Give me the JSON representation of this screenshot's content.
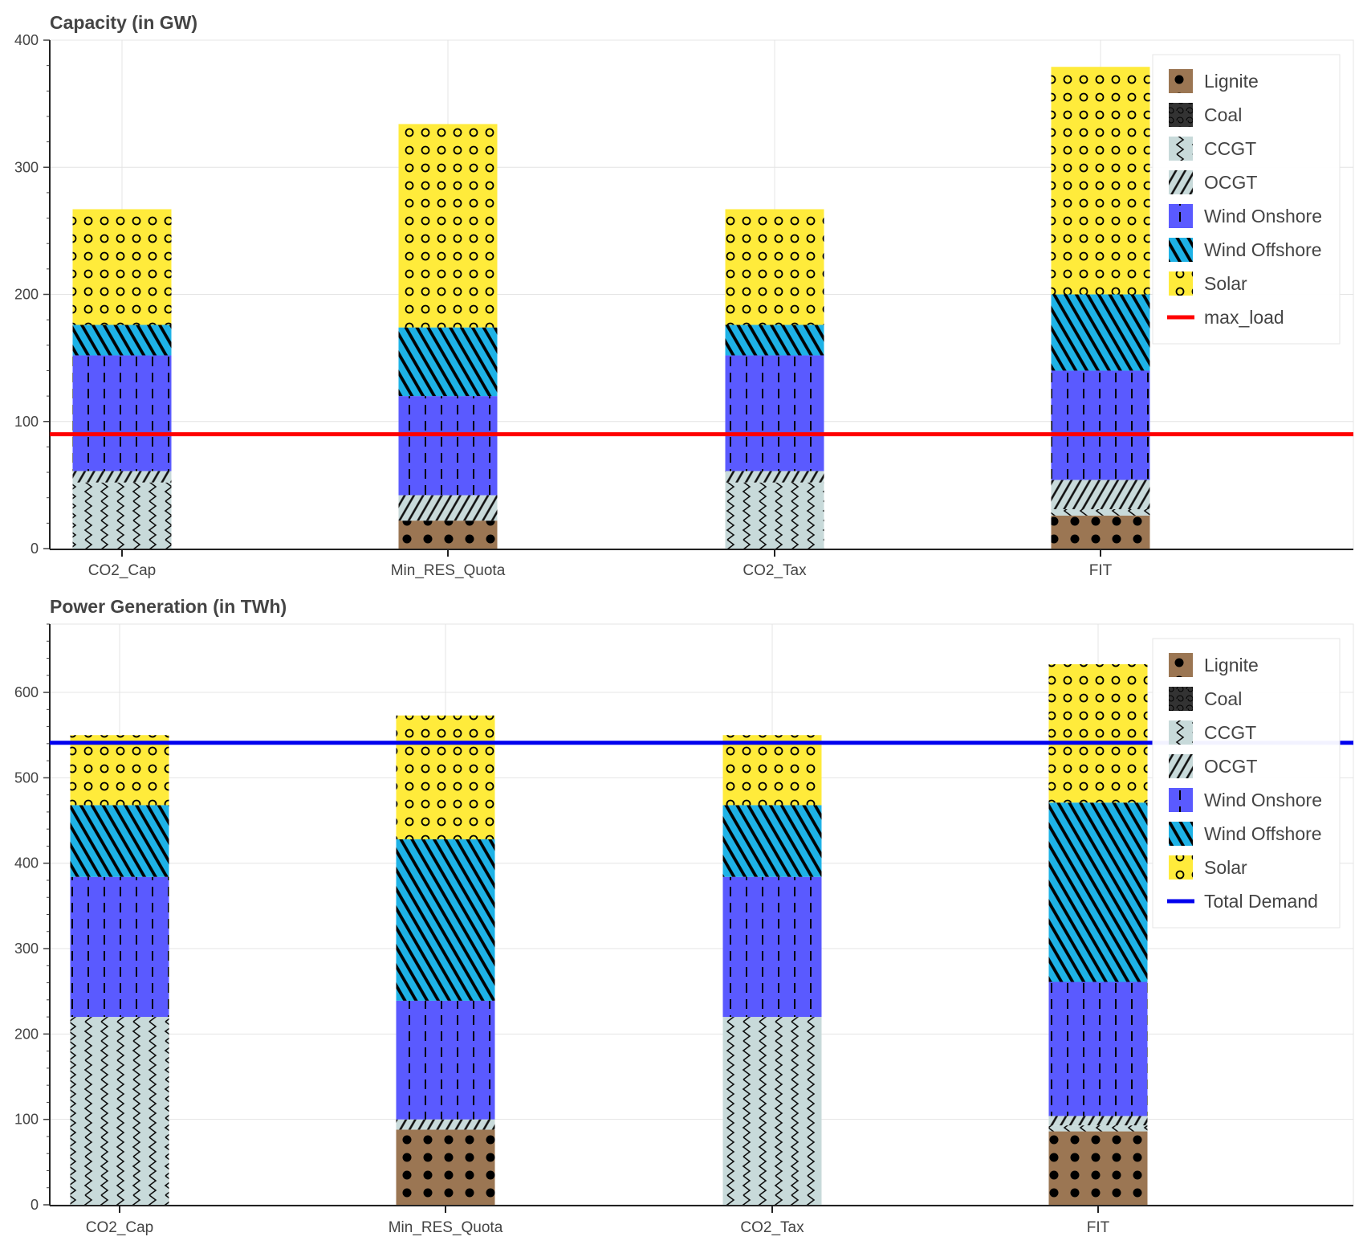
{
  "palette": {
    "Lignite": "#9b7653",
    "Coal": "#333333",
    "CCGT": "#c8dada",
    "OCGT": "#c8dada",
    "Wind Onshore": "#5a5aff",
    "Wind Offshore": "#1eb2e6",
    "Solar": "#ffeb3b",
    "max_load": "#ff0000",
    "Total Demand": "#0000ee"
  },
  "chart_data": [
    {
      "type": "bar",
      "stacked": true,
      "title": "Capacity (in GW)",
      "categories": [
        "CO2_Cap",
        "Min_RES_Quota",
        "CO2_Tax",
        "FIT"
      ],
      "series": [
        {
          "name": "Lignite",
          "values": [
            0,
            22,
            0,
            26
          ]
        },
        {
          "name": "Coal",
          "values": [
            0,
            0,
            0,
            0
          ]
        },
        {
          "name": "CCGT",
          "values": [
            52,
            0,
            52,
            5
          ]
        },
        {
          "name": "OCGT",
          "values": [
            9,
            20,
            9,
            23
          ]
        },
        {
          "name": "Wind Onshore",
          "values": [
            91,
            78,
            91,
            86
          ]
        },
        {
          "name": "Wind Offshore",
          "values": [
            24,
            54,
            24,
            60
          ]
        },
        {
          "name": "Solar",
          "values": [
            91,
            160,
            91,
            179
          ]
        }
      ],
      "line": {
        "name": "max_load",
        "value": 90
      },
      "ylim": [
        0,
        400
      ],
      "yticks": [
        0,
        100,
        200,
        300,
        400
      ],
      "grid": true,
      "legend": "top-right"
    },
    {
      "type": "bar",
      "stacked": true,
      "title": "Power Generation (in TWh)",
      "categories": [
        "CO2_Cap",
        "Min_RES_Quota",
        "CO2_Tax",
        "FIT"
      ],
      "series": [
        {
          "name": "Lignite",
          "values": [
            0,
            88,
            0,
            86
          ]
        },
        {
          "name": "Coal",
          "values": [
            0,
            0,
            0,
            0
          ]
        },
        {
          "name": "CCGT",
          "values": [
            220,
            0,
            220,
            7
          ]
        },
        {
          "name": "OCGT",
          "values": [
            0,
            12,
            0,
            11
          ]
        },
        {
          "name": "Wind Onshore",
          "values": [
            164,
            139,
            164,
            157
          ]
        },
        {
          "name": "Wind Offshore",
          "values": [
            84,
            189,
            84,
            210
          ]
        },
        {
          "name": "Solar",
          "values": [
            82,
            145,
            82,
            162
          ]
        }
      ],
      "line": {
        "name": "Total Demand",
        "value": 541
      },
      "ylim": [
        0,
        680
      ],
      "yticks": [
        0,
        100,
        200,
        300,
        400,
        500,
        600
      ],
      "grid": true,
      "legend": "top-right"
    }
  ]
}
